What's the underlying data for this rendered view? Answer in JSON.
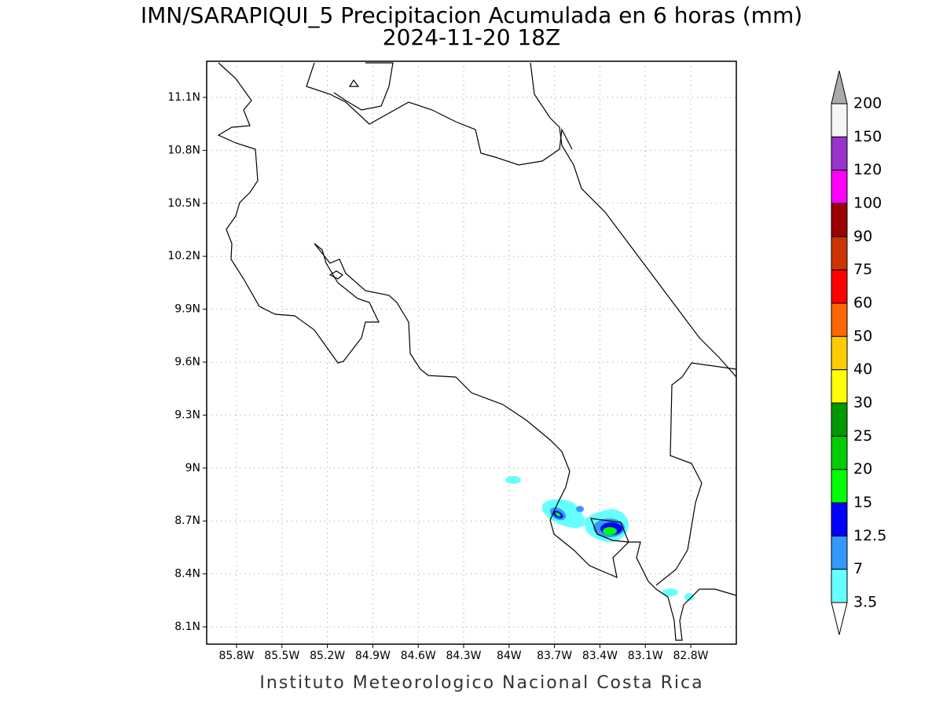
{
  "title": "IMN/SARAPIQUI_5 Precipitacion Acumulada en 6 horas (mm)",
  "subtitle": "2024-11-20 18Z",
  "map": {
    "lat_labels": [
      "11.1N",
      "10.8N",
      "10.5N",
      "10.2N",
      "9.9N",
      "9.6N",
      "9.3N",
      "9N",
      "8.7N",
      "8.4N",
      "8.1N"
    ],
    "lon_labels": [
      "85.8W",
      "85.5W",
      "85.2W",
      "84.9W",
      "84.6W",
      "84.3W",
      "84W",
      "83.7W",
      "83.4W",
      "83.1W",
      "82.8W"
    ]
  },
  "legend": {
    "levels": [
      200,
      150,
      120,
      100,
      90,
      75,
      60,
      50,
      40,
      30,
      25,
      20,
      15,
      12.5,
      7,
      3.5
    ],
    "colors": [
      "#f5f5f5",
      "#9933cc",
      "#ff00ff",
      "#990000",
      "#cc3300",
      "#ff0000",
      "#ff6600",
      "#ffcc00",
      "#ffff00",
      "#009900",
      "#00cc00",
      "#00ff00",
      "#0000ff",
      "#3399ff",
      "#66ffff"
    ],
    "over_color": "#aaaaaa"
  },
  "footer": "Instituto Meteorologico Nacional Costa Rica"
}
